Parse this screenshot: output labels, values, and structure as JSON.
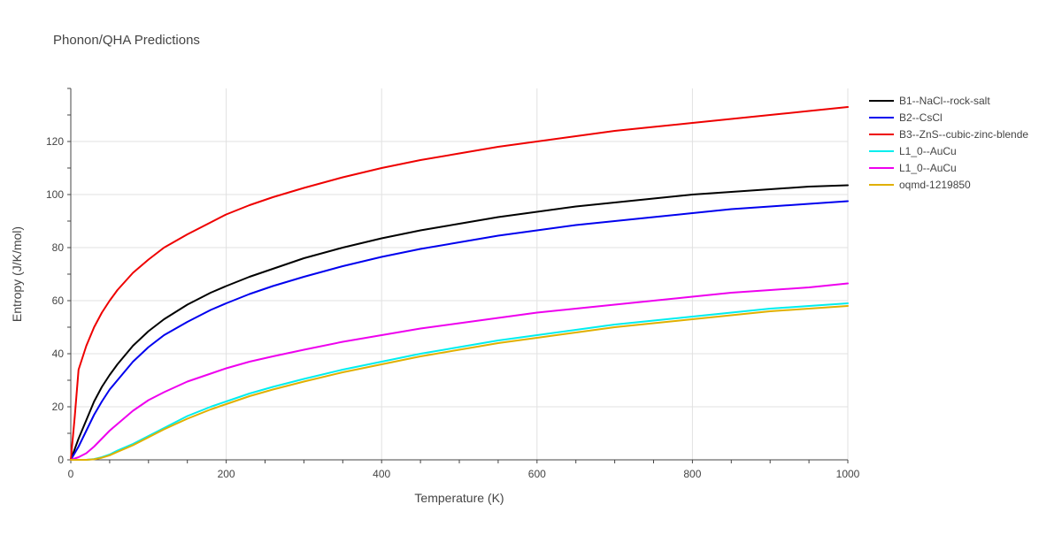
{
  "chart_data": {
    "type": "line",
    "title": "Phonon/QHA Predictions",
    "xlabel": "Temperature (K)",
    "ylabel": "Entropy (J/K/mol)",
    "xlim": [
      0,
      1000
    ],
    "ylim": [
      0,
      140
    ],
    "xticks": [
      0,
      200,
      400,
      600,
      800,
      1000
    ],
    "yticks": [
      0,
      20,
      40,
      60,
      80,
      100,
      120
    ],
    "grid": true,
    "legend_position": "top-right-outside",
    "series": [
      {
        "name": "B1--NaCl--rock-salt",
        "color": "#000000",
        "x": [
          0,
          10,
          20,
          30,
          40,
          50,
          60,
          80,
          100,
          120,
          150,
          180,
          200,
          230,
          260,
          300,
          350,
          400,
          450,
          500,
          550,
          600,
          650,
          700,
          750,
          800,
          850,
          900,
          950,
          1000
        ],
        "y": [
          0,
          8,
          15,
          22,
          27.5,
          32,
          36,
          43,
          48.5,
          53,
          58.5,
          63,
          65.5,
          69,
          72,
          76,
          80,
          83.5,
          86.5,
          89,
          91.5,
          93.5,
          95.5,
          97,
          98.5,
          100,
          101,
          102,
          103,
          103.5
        ]
      },
      {
        "name": "B2--CsCl",
        "color": "#0000ee",
        "x": [
          0,
          10,
          20,
          30,
          40,
          50,
          60,
          80,
          100,
          120,
          150,
          180,
          200,
          230,
          260,
          300,
          350,
          400,
          450,
          500,
          550,
          600,
          650,
          700,
          750,
          800,
          850,
          900,
          950,
          1000
        ],
        "y": [
          0,
          5,
          11,
          17,
          22,
          26.5,
          30,
          37,
          42.5,
          47,
          52,
          56.5,
          59,
          62.5,
          65.5,
          69,
          73,
          76.5,
          79.5,
          82,
          84.5,
          86.5,
          88.5,
          90,
          91.5,
          93,
          94.5,
          95.5,
          96.5,
          97.5
        ]
      },
      {
        "name": "B3--ZnS--cubic-zinc-blende",
        "color": "#ee0000",
        "x": [
          0,
          5,
          10,
          20,
          30,
          40,
          50,
          60,
          80,
          100,
          120,
          150,
          180,
          200,
          230,
          260,
          300,
          350,
          400,
          450,
          500,
          550,
          600,
          650,
          700,
          750,
          800,
          850,
          900,
          950,
          1000
        ],
        "y": [
          0,
          16,
          34,
          43,
          50,
          55.5,
          60,
          64,
          70.5,
          75.5,
          80,
          85,
          89.5,
          92.5,
          96,
          99,
          102.5,
          106.5,
          110,
          113,
          115.5,
          118,
          120,
          122,
          124,
          125.5,
          127,
          128.5,
          130,
          131.5,
          133
        ]
      },
      {
        "name": "L1_0--AuCu",
        "color": "#00eeee",
        "x": [
          0,
          20,
          30,
          40,
          50,
          60,
          80,
          100,
          120,
          150,
          180,
          200,
          230,
          260,
          300,
          350,
          400,
          450,
          500,
          550,
          600,
          650,
          700,
          750,
          800,
          850,
          900,
          950,
          1000
        ],
        "y": [
          0,
          0,
          0.3,
          1,
          2,
          3.5,
          6,
          9,
          12,
          16.5,
          20,
          22,
          25,
          27.5,
          30.5,
          34,
          37,
          40,
          42.5,
          45,
          47,
          49,
          51,
          52.5,
          54,
          55.5,
          57,
          58,
          59
        ]
      },
      {
        "name": "L1_0--AuCu",
        "color": "#ee00ee",
        "x": [
          0,
          10,
          20,
          30,
          40,
          50,
          60,
          80,
          100,
          120,
          150,
          180,
          200,
          230,
          260,
          300,
          350,
          400,
          450,
          500,
          550,
          600,
          650,
          700,
          750,
          800,
          850,
          900,
          950,
          1000
        ],
        "y": [
          0,
          1,
          2.5,
          5,
          8,
          11,
          13.5,
          18.5,
          22.5,
          25.5,
          29.5,
          32.5,
          34.5,
          37,
          39,
          41.5,
          44.5,
          47,
          49.5,
          51.5,
          53.5,
          55.5,
          57,
          58.5,
          60,
          61.5,
          63,
          64,
          65,
          66.5
        ]
      },
      {
        "name": "oqmd-1219850",
        "color": "#e0b000",
        "x": [
          0,
          20,
          30,
          40,
          50,
          60,
          80,
          100,
          120,
          150,
          180,
          200,
          230,
          260,
          300,
          350,
          400,
          450,
          500,
          550,
          600,
          650,
          700,
          750,
          800,
          850,
          900,
          950,
          1000
        ],
        "y": [
          0,
          0,
          0.2,
          0.8,
          1.7,
          3,
          5.5,
          8.5,
          11.5,
          15.5,
          19,
          21,
          24,
          26.5,
          29.5,
          33,
          36,
          39,
          41.5,
          44,
          46,
          48,
          50,
          51.5,
          53,
          54.5,
          56,
          57,
          58
        ]
      }
    ]
  }
}
